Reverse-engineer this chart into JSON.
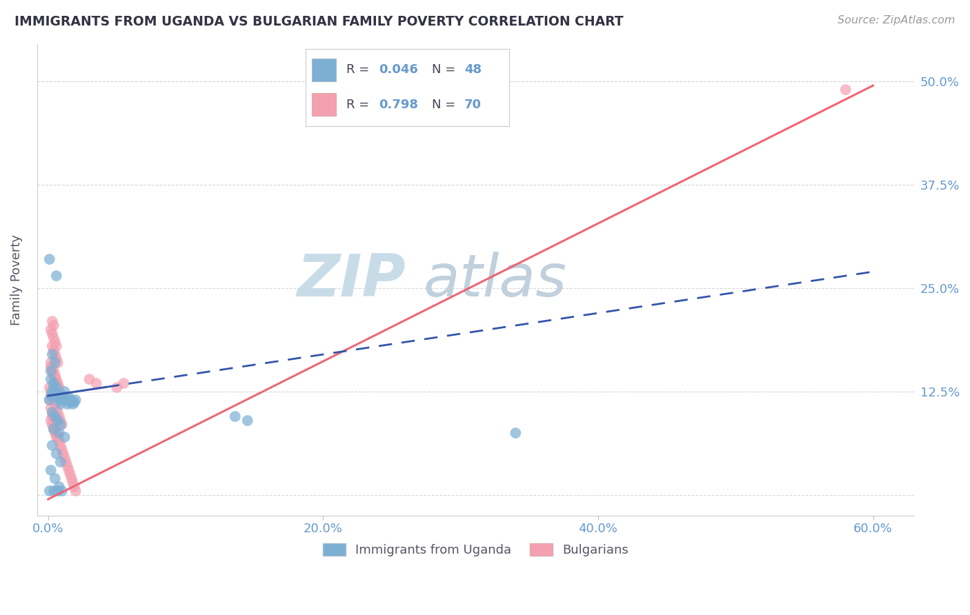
{
  "title": "IMMIGRANTS FROM UGANDA VS BULGARIAN FAMILY POVERTY CORRELATION CHART",
  "source": "Source: ZipAtlas.com",
  "tick_color": "#6699cc",
  "ylabel": "Family Poverty",
  "y_ticks": [
    0.0,
    0.125,
    0.25,
    0.375,
    0.5
  ],
  "y_tick_labels": [
    "",
    "12.5%",
    "25.0%",
    "37.5%",
    "50.0%"
  ],
  "x_ticks": [
    0.0,
    0.2,
    0.4,
    0.6
  ],
  "x_tick_labels": [
    "0.0%",
    "20.0%",
    "40.0%",
    "60.0%"
  ],
  "xlim": [
    -0.008,
    0.63
  ],
  "ylim": [
    -0.025,
    0.545
  ],
  "blue_color": "#7bafd4",
  "pink_color": "#f4a0b0",
  "blue_line_color": "#3355aa",
  "pink_line_color": "#ee6677",
  "title_color": "#333344",
  "source_color": "#999999",
  "watermark_zip_color": "#c8dce8",
  "watermark_atlas_color": "#c0d0dc",
  "grid_color": "#cccccc",
  "uganda_x": [
    0.001,
    0.002,
    0.003,
    0.004,
    0.005,
    0.006,
    0.007,
    0.008,
    0.009,
    0.01,
    0.011,
    0.012,
    0.013,
    0.014,
    0.015,
    0.016,
    0.017,
    0.018,
    0.019,
    0.02,
    0.002,
    0.004,
    0.006,
    0.003,
    0.005,
    0.007,
    0.009,
    0.004,
    0.008,
    0.012,
    0.003,
    0.006,
    0.009,
    0.002,
    0.005,
    0.008,
    0.001,
    0.004,
    0.007,
    0.01,
    0.003,
    0.005,
    0.002,
    0.136,
    0.145,
    0.34,
    0.001,
    0.006
  ],
  "uganda_y": [
    0.115,
    0.12,
    0.125,
    0.13,
    0.125,
    0.118,
    0.122,
    0.115,
    0.11,
    0.115,
    0.12,
    0.125,
    0.115,
    0.11,
    0.118,
    0.112,
    0.115,
    0.11,
    0.112,
    0.115,
    0.14,
    0.135,
    0.13,
    0.1,
    0.095,
    0.09,
    0.085,
    0.08,
    0.075,
    0.07,
    0.06,
    0.05,
    0.04,
    0.03,
    0.02,
    0.01,
    0.005,
    0.005,
    0.005,
    0.005,
    0.17,
    0.16,
    0.15,
    0.095,
    0.09,
    0.075,
    0.285,
    0.265
  ],
  "bulgarian_x": [
    0.001,
    0.002,
    0.003,
    0.004,
    0.005,
    0.006,
    0.007,
    0.008,
    0.009,
    0.01,
    0.011,
    0.012,
    0.013,
    0.014,
    0.015,
    0.016,
    0.017,
    0.018,
    0.019,
    0.02,
    0.001,
    0.002,
    0.003,
    0.004,
    0.005,
    0.006,
    0.007,
    0.008,
    0.009,
    0.01,
    0.002,
    0.003,
    0.004,
    0.005,
    0.006,
    0.007,
    0.008,
    0.009,
    0.003,
    0.004,
    0.005,
    0.006,
    0.007,
    0.002,
    0.003,
    0.004,
    0.005,
    0.006,
    0.003,
    0.004,
    0.002,
    0.003,
    0.004,
    0.005,
    0.006,
    0.007,
    0.008,
    0.002,
    0.003,
    0.004,
    0.005,
    0.006,
    0.003,
    0.004,
    0.005,
    0.03,
    0.035,
    0.05,
    0.055,
    0.58
  ],
  "bulgarian_y": [
    0.115,
    0.105,
    0.095,
    0.085,
    0.08,
    0.075,
    0.07,
    0.065,
    0.06,
    0.055,
    0.05,
    0.045,
    0.04,
    0.035,
    0.03,
    0.025,
    0.02,
    0.015,
    0.01,
    0.005,
    0.13,
    0.125,
    0.12,
    0.115,
    0.11,
    0.105,
    0.1,
    0.095,
    0.09,
    0.085,
    0.155,
    0.15,
    0.145,
    0.14,
    0.135,
    0.13,
    0.125,
    0.12,
    0.18,
    0.175,
    0.17,
    0.165,
    0.16,
    0.2,
    0.195,
    0.19,
    0.185,
    0.18,
    0.21,
    0.205,
    0.16,
    0.155,
    0.15,
    0.145,
    0.14,
    0.135,
    0.13,
    0.09,
    0.085,
    0.08,
    0.075,
    0.07,
    0.1,
    0.095,
    0.09,
    0.14,
    0.135,
    0.13,
    0.135,
    0.49
  ],
  "ug_line_x": [
    0.0,
    0.042,
    0.042,
    0.6
  ],
  "bg_line_x0": 0.0,
  "bg_line_x1": 0.6,
  "bg_line_y0": -0.005,
  "bg_line_y1": 0.495
}
